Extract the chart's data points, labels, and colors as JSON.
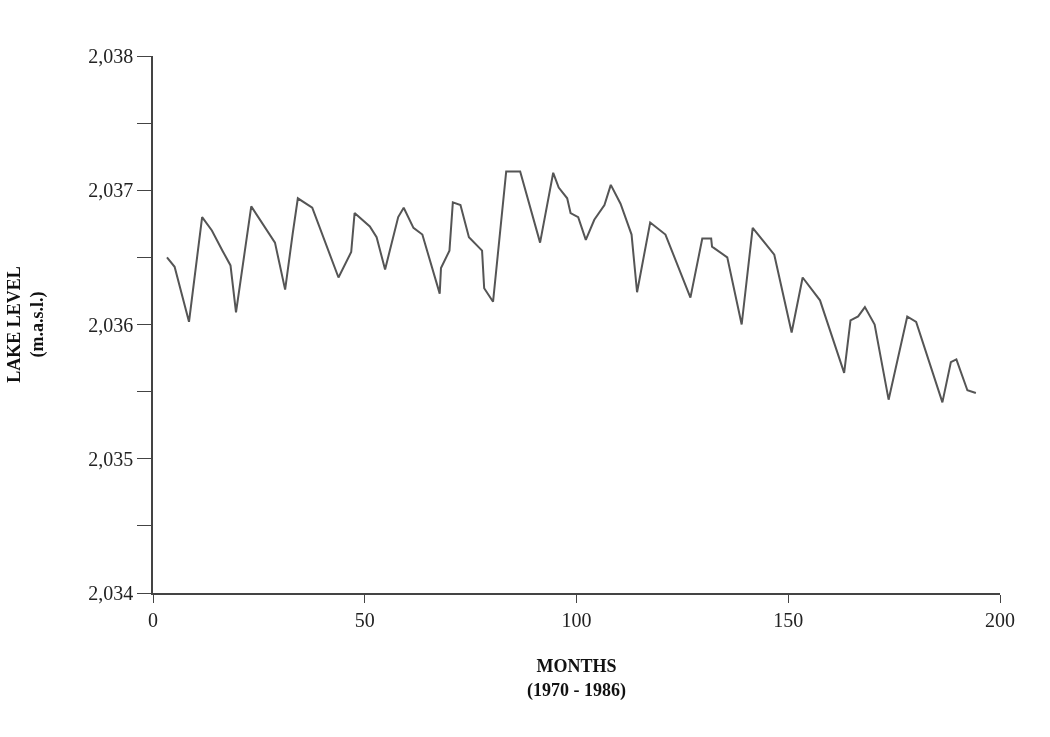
{
  "chart_data": {
    "type": "line",
    "xlabel": "MONTHS\n(1970 - 1986)",
    "ylabel": "LAKE LEVEL\n(m.a.s.l.)",
    "series": [
      {
        "color": "#555555",
        "x": [
          3.3,
          5.1,
          8.5,
          11.6,
          13.9,
          16.4,
          18.3,
          19.6,
          23.2,
          28.8,
          31.2,
          33.0,
          34.2,
          37.6,
          43.8,
          46.8,
          47.6,
          51.2,
          52.8,
          54.8,
          57.9,
          59.2,
          61.5,
          63.6,
          67.7,
          68.0,
          70.0,
          70.8,
          72.6,
          74.6,
          77.7,
          78.2,
          80.3,
          83.4,
          86.7,
          91.4,
          94.5,
          95.8,
          97.8,
          98.6,
          100.4,
          102.2,
          104.2,
          106.6,
          108.1,
          110.4,
          113.0,
          114.3,
          117.4,
          121.0,
          126.9,
          129.7,
          131.8,
          132.0,
          135.6,
          139.0,
          141.6,
          146.7,
          150.8,
          153.4,
          157.5,
          163.2,
          164.7,
          166.5,
          168.1,
          170.4,
          173.7,
          178.1,
          180.2,
          186.4,
          188.4,
          189.7,
          192.3,
          194.3
        ],
        "values": [
          2036.5,
          2036.43,
          2036.02,
          2036.8,
          2036.7,
          2036.55,
          2036.44,
          2036.09,
          2036.88,
          2036.61,
          2036.26,
          2036.68,
          2036.94,
          2036.87,
          2036.35,
          2036.54,
          2036.83,
          2036.73,
          2036.65,
          2036.41,
          2036.8,
          2036.87,
          2036.72,
          2036.67,
          2036.23,
          2036.42,
          2036.55,
          2036.91,
          2036.89,
          2036.65,
          2036.55,
          2036.27,
          2036.17,
          2037.14,
          2037.14,
          2036.61,
          2037.13,
          2037.02,
          2036.94,
          2036.83,
          2036.8,
          2036.63,
          2036.78,
          2036.89,
          2037.04,
          2036.9,
          2036.67,
          2036.24,
          2036.76,
          2036.67,
          2036.2,
          2036.64,
          2036.64,
          2036.58,
          2036.5,
          2036.0,
          2036.72,
          2036.52,
          2035.94,
          2036.35,
          2036.18,
          2035.64,
          2036.03,
          2036.06,
          2036.13,
          2036.0,
          2035.44,
          2036.06,
          2036.02,
          2035.42,
          2035.72,
          2035.74,
          2035.51,
          2035.49
        ]
      }
    ],
    "xlim": [
      0,
      200
    ],
    "xticks": [
      0,
      50,
      100,
      150,
      200
    ],
    "ylim": [
      2034,
      2038
    ],
    "yticks": [
      {
        "value": 2034,
        "label": "2,034"
      },
      {
        "value": 2034.5,
        "label": null
      },
      {
        "value": 2035,
        "label": "2,035"
      },
      {
        "value": 2035.5,
        "label": null
      },
      {
        "value": 2036,
        "label": "2,036"
      },
      {
        "value": 2036.5,
        "label": null
      },
      {
        "value": 2037,
        "label": "2,037"
      },
      {
        "value": 2037.5,
        "label": null
      },
      {
        "value": 2038,
        "label": "2,038"
      }
    ],
    "marker": "none",
    "line_style": "solid"
  }
}
